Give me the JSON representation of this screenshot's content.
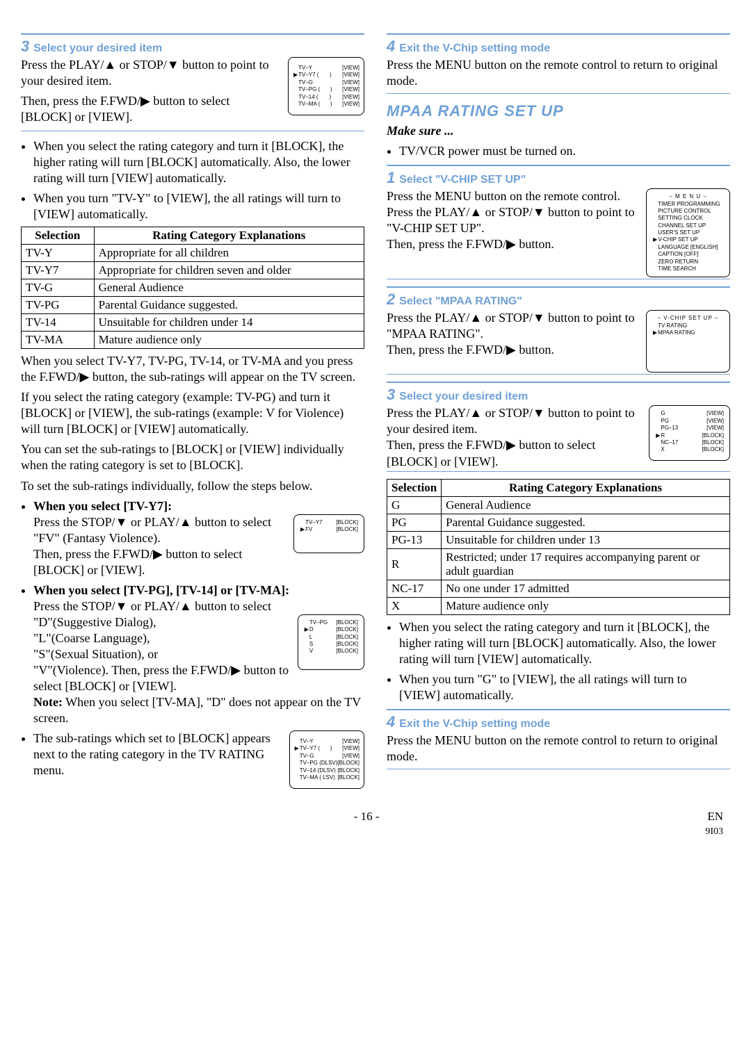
{
  "left": {
    "step3": {
      "num": "3",
      "title": "Select your desired item",
      "p1": "Press the PLAY/▲ or STOP/▼ button to point to your desired item.",
      "p2": "Then, press the F.FWD/▶ button to select [BLOCK] or [VIEW].",
      "osd_rows": [
        [
          "",
          "TV–Y",
          "",
          "[VIEW]"
        ],
        [
          "▶",
          "TV–Y7 (",
          ")",
          "[VIEW]"
        ],
        [
          "",
          "TV–G",
          "",
          "[VIEW]"
        ],
        [
          "",
          "TV–PG (",
          ")",
          "[VIEW]"
        ],
        [
          "",
          "TV–14 (",
          ")",
          "[VIEW]"
        ],
        [
          "",
          "TV–MA (",
          ")",
          "[VIEW]"
        ]
      ]
    },
    "bullets1": [
      "When you select the rating category and turn it [BLOCK], the higher rating will turn [BLOCK] automatically. Also, the lower rating will turn [VIEW] automatically.",
      "When you turn \"TV-Y\" to [VIEW], the all ratings will turn to [VIEW] automatically."
    ],
    "table": {
      "h1": "Selection",
      "h2": "Rating Category Explanations",
      "rows": [
        [
          "TV-Y",
          "Appropriate for all children"
        ],
        [
          "TV-Y7",
          "Appropriate for children seven and older"
        ],
        [
          "TV-G",
          "General Audience"
        ],
        [
          "TV-PG",
          "Parental Guidance suggested."
        ],
        [
          "TV-14",
          "Unsuitable for children under 14"
        ],
        [
          "TV-MA",
          "Mature audience only"
        ]
      ]
    },
    "p_after_table_1": "When you select TV-Y7, TV-PG, TV-14, or TV-MA and you press the F.FWD/▶ button, the sub-ratings will appear on the TV screen.",
    "p_after_table_2": "If you select the rating category (example: TV-PG) and turn it [BLOCK] or [VIEW], the sub-ratings (example: V for Violence) will turn [BLOCK] or [VIEW] automatically.",
    "p_after_table_3": "You can set the sub-ratings to [BLOCK] or [VIEW] individually when the rating category is set to [BLOCK].",
    "p_after_table_4": "To set the sub-ratings individually, follow the steps below.",
    "sub_y7": {
      "head": "When you select [TV-Y7]:",
      "p1": "Press the STOP/▼ or PLAY/▲ button to select \"FV\" (Fantasy Violence).",
      "p2": "Then, press the F.FWD/▶ button to select [BLOCK] or [VIEW].",
      "osd": [
        [
          "",
          "TV–Y7",
          "[BLOCK]"
        ],
        [
          "▶",
          "FV",
          "[BLOCK]"
        ]
      ]
    },
    "sub_pg": {
      "head": "When you select [TV-PG], [TV-14] or [TV-MA]:",
      "p1": "Press the STOP/▼ or PLAY/▲ button to select",
      "lines": [
        "\"D\"(Suggestive Dialog),",
        "\"L\"(Coarse Language),",
        "\"S\"(Sexual Situation), or",
        "\"V\"(Violence). Then, press the F.FWD/▶ button to select [BLOCK] or [VIEW]."
      ],
      "note_label": "Note:",
      "note": " When you select [TV-MA], \"D\" does not appear on the TV screen.",
      "osd": [
        [
          "",
          "TV–PG",
          "[BLOCK]"
        ],
        [
          "▶",
          "D",
          "[BLOCK]"
        ],
        [
          "",
          "L",
          "[BLOCK]"
        ],
        [
          "",
          "S",
          "[BLOCK]"
        ],
        [
          "",
          "V",
          "[BLOCK]"
        ]
      ]
    },
    "sub_block": {
      "p": "The sub-ratings which set to [BLOCK] appears next to the rating category in the TV RATING menu.",
      "osd": [
        [
          "",
          "TV–Y",
          "",
          "[VIEW]"
        ],
        [
          "▶",
          "TV–Y7 (",
          ")",
          "[VIEW]"
        ],
        [
          "",
          "TV–G",
          "",
          "[VIEW]"
        ],
        [
          "",
          "TV–PG (DLSV)",
          "",
          "[BLOCK]"
        ],
        [
          "",
          "TV–14 (DLSV)",
          "",
          "[BLOCK]"
        ],
        [
          "",
          "TV–MA (  LSV)",
          "",
          "[BLOCK]"
        ]
      ]
    }
  },
  "right": {
    "step4a": {
      "num": "4",
      "title": "Exit the V-Chip setting mode",
      "p": "Press the MENU button on the remote control to return to original mode."
    },
    "section_title": "MPAA RATING SET UP",
    "makesure_label": "Make sure ...",
    "makesure_item": "TV/VCR power must be turned on.",
    "step1": {
      "num": "1",
      "title": "Select \"V-CHIP SET UP\"",
      "p1": "Press the MENU button on the remote control.",
      "p2": "Press the PLAY/▲ or STOP/▼ button to point to \"V-CHIP SET UP\".",
      "p3": "Then, press the F.FWD/▶ button.",
      "osd_title": "– M E N U –",
      "osd_rows": [
        [
          "",
          "TIMER PROGRAMMING"
        ],
        [
          "",
          "PICTURE CONTROL"
        ],
        [
          "",
          "SETTING CLOCK"
        ],
        [
          "",
          "CHANNEL SET UP"
        ],
        [
          "",
          "USER'S SET UP"
        ],
        [
          "▶",
          "V-CHIP SET UP"
        ],
        [
          "",
          "LANGUAGE    [ENGLISH]"
        ],
        [
          "",
          "CAPTION      [OFF]"
        ],
        [
          "",
          "ZERO RETURN"
        ],
        [
          "",
          "TIME SEARCH"
        ]
      ]
    },
    "step2": {
      "num": "2",
      "title": "Select \"MPAA RATING\"",
      "p1": "Press the PLAY/▲ or STOP/▼ button to point to \"MPAA RATING\".",
      "p2": "Then, press the F.FWD/▶ button.",
      "osd_title": "– V-CHIP SET UP –",
      "osd_rows": [
        [
          "",
          "TV RATING"
        ],
        [
          "▶",
          "MPAA RATING"
        ]
      ]
    },
    "step3": {
      "num": "3",
      "title": "Select your desired item",
      "p1": "Press the PLAY/▲ or STOP/▼ button to point to your desired item.",
      "p2": "Then, press the F.FWD/▶ button to select [BLOCK] or [VIEW].",
      "osd_rows": [
        [
          "",
          "G",
          "[VIEW]"
        ],
        [
          "",
          "PG",
          "[VIEW]"
        ],
        [
          "",
          "PG–13",
          "[VIEW]"
        ],
        [
          "▶",
          "R",
          "[BLOCK]"
        ],
        [
          "",
          "NC–17",
          "[BLOCK]"
        ],
        [
          "",
          "X",
          "[BLOCK]"
        ]
      ]
    },
    "table": {
      "h1": "Selection",
      "h2": "Rating Category Explanations",
      "rows": [
        [
          "G",
          "General Audience"
        ],
        [
          "PG",
          "Parental Guidance suggested."
        ],
        [
          "PG-13",
          "Unsuitable for children under 13"
        ],
        [
          "R",
          "Restricted; under 17 requires accompanying parent or adult guardian"
        ],
        [
          "NC-17",
          "No one under 17 admitted"
        ],
        [
          "X",
          "Mature audience only"
        ]
      ]
    },
    "bullets": [
      "When you select the rating category and turn it [BLOCK], the higher rating will turn [BLOCK] automatically.  Also, the lower rating will turn [VIEW] automatically.",
      "When you turn \"G\" to [VIEW], the all ratings will turn to [VIEW] automatically."
    ],
    "step4b": {
      "num": "4",
      "title": "Exit the V-Chip setting mode",
      "p": "Press the MENU button on the remote control to return to original mode."
    }
  },
  "footer": {
    "page": "- 16 -",
    "lang": "EN",
    "code": "9I03"
  }
}
